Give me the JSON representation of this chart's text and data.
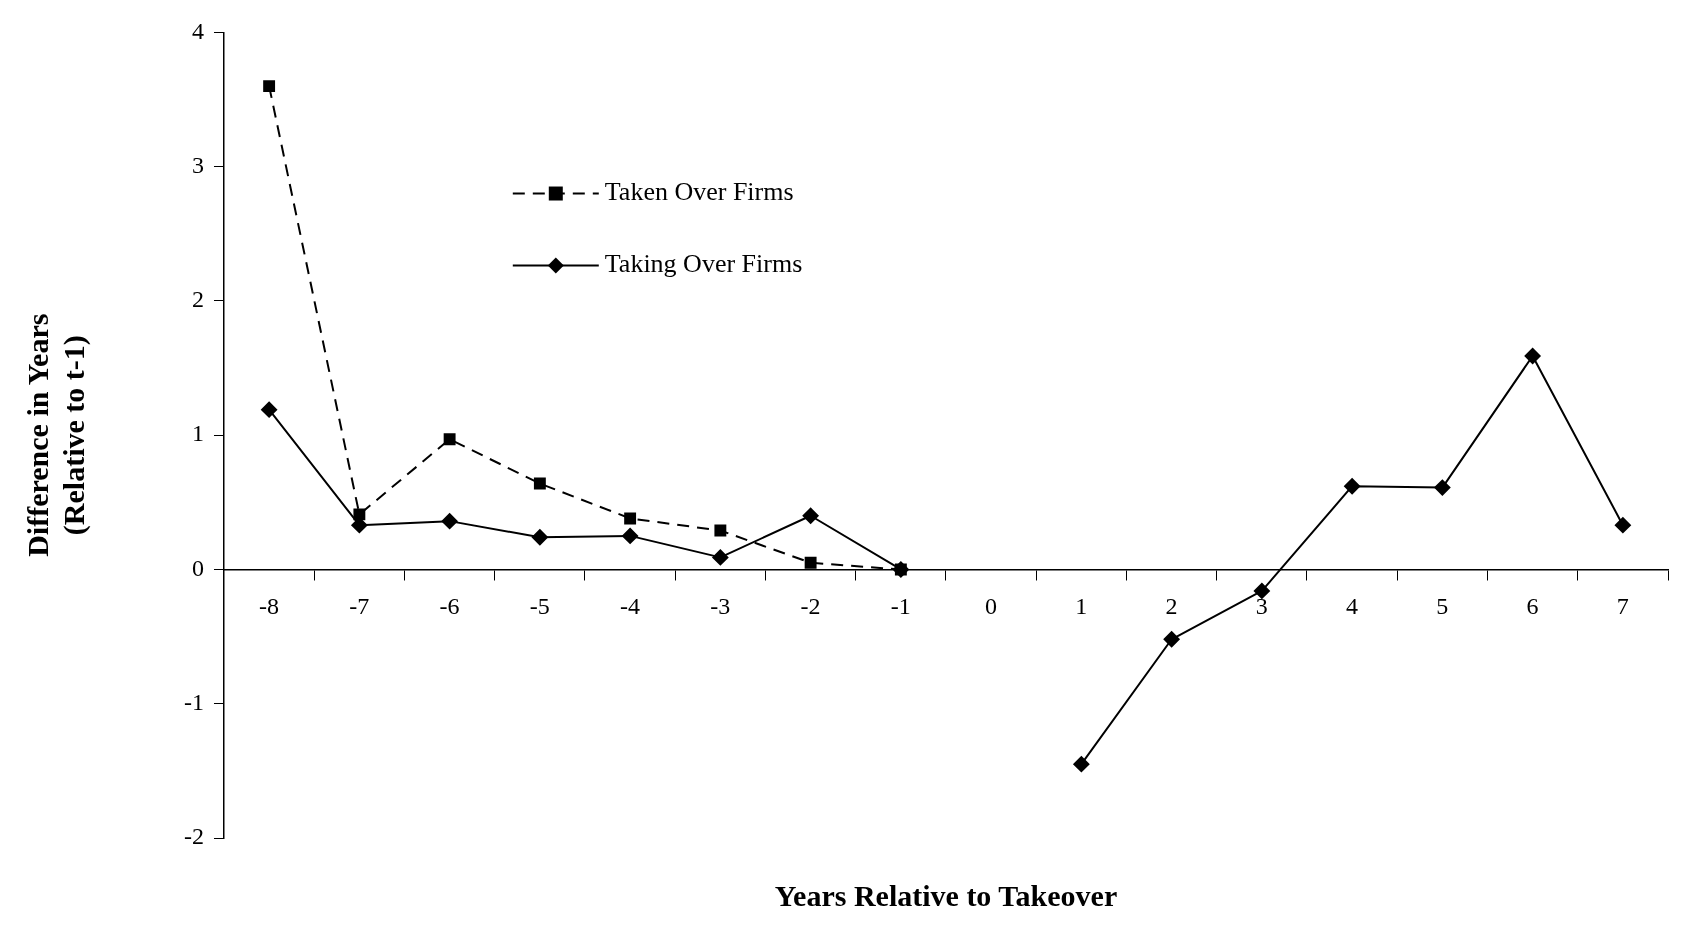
{
  "chart_data": {
    "type": "line",
    "xlabel": "Years Relative to Takeover",
    "ylabel": "Difference in Years\n(Relative to t-1)",
    "categories": [
      "-8",
      "-7",
      "-6",
      "-5",
      "-4",
      "-3",
      "-2",
      "-1",
      "0",
      "1",
      "2",
      "3",
      "4",
      "5",
      "6",
      "7"
    ],
    "series": [
      {
        "name": "Taken Over Firms",
        "color": "#000000",
        "marker": "square",
        "line_style": "dashed",
        "values": [
          3.6,
          0.41,
          0.97,
          0.64,
          0.38,
          0.29,
          0.05,
          0,
          null,
          null,
          null,
          null,
          null,
          null,
          null,
          null
        ]
      },
      {
        "name": "Taking Over Firms",
        "color": "#000000",
        "marker": "diamond",
        "line_style": "solid",
        "values": [
          1.19,
          0.33,
          0.36,
          0.24,
          0.25,
          0.09,
          0.4,
          0,
          null,
          -1.45,
          -0.52,
          -0.16,
          0.62,
          0.61,
          1.59,
          0.33
        ]
      }
    ],
    "ylim": [
      -2,
      4
    ],
    "yticks": [
      -2,
      -1,
      0,
      1,
      2,
      3,
      4
    ],
    "grid": false,
    "legend": "top left"
  }
}
